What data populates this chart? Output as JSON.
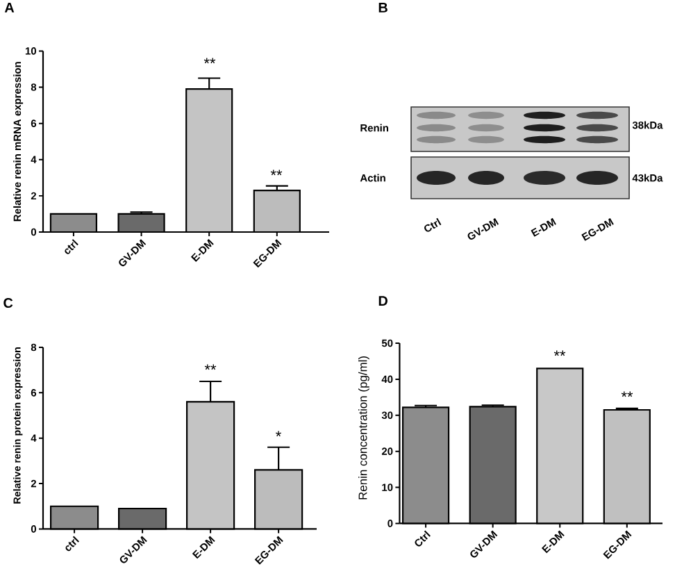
{
  "chart_data": [
    {
      "type": "bar",
      "title": "A",
      "ylabel": "Relative renin mRNA expression",
      "categories": [
        "ctrl",
        "GV-DM",
        "E-DM",
        "EG-DM"
      ],
      "values": [
        1.0,
        1.0,
        7.9,
        2.3
      ],
      "errors": [
        null,
        [
          1.0,
          1.1
        ],
        [
          7.9,
          8.5
        ],
        [
          2.3,
          2.55
        ]
      ],
      "colors": [
        "#8c8c8c",
        "#6a6a6a",
        "#c4c4c4",
        "#bcbcbc"
      ],
      "ylim": [
        0,
        10
      ],
      "yticks": [
        0,
        2,
        4,
        6,
        8,
        10
      ],
      "annotations": [
        "**",
        "**"
      ]
    },
    {
      "type": "other",
      "title": "B",
      "categories": [
        "Ctrl",
        "GV-DM",
        "E-DM",
        "EG-DM"
      ],
      "annotations": [
        "Renin",
        "Actin",
        "38kDa",
        "43kDa"
      ]
    },
    {
      "type": "bar",
      "title": "C",
      "ylabel": "Relative renin protein expression",
      "categories": [
        "ctrl",
        "GV-DM",
        "E-DM",
        "EG-DM"
      ],
      "values": [
        1.0,
        0.9,
        5.6,
        2.6
      ],
      "errors": [
        null,
        null,
        [
          5.6,
          6.5
        ],
        [
          2.6,
          3.6
        ]
      ],
      "colors": [
        "#8c8c8c",
        "#6a6a6a",
        "#c4c4c4",
        "#bcbcbc"
      ],
      "ylim": [
        0,
        8
      ],
      "yticks": [
        0,
        2,
        4,
        6,
        8
      ],
      "annotations": [
        "**",
        "*"
      ]
    },
    {
      "type": "bar",
      "title": "D",
      "ylabel": "Renin concentration (pg/ml)",
      "categories": [
        "Ctrl",
        "GV-DM",
        "E-DM",
        "EG-DM"
      ],
      "values": [
        32.2,
        32.4,
        43.0,
        31.5
      ],
      "errors": [
        [
          32.2,
          32.7
        ],
        [
          32.4,
          32.8
        ],
        null,
        [
          31.5,
          31.9
        ]
      ],
      "colors": [
        "#8c8c8c",
        "#6a6a6a",
        "#c8c8c8",
        "#c0c0c0"
      ],
      "ylim": [
        0,
        50
      ],
      "yticks": [
        0,
        10,
        20,
        30,
        40,
        50
      ],
      "annotations": [
        "**",
        "**"
      ]
    }
  ]
}
